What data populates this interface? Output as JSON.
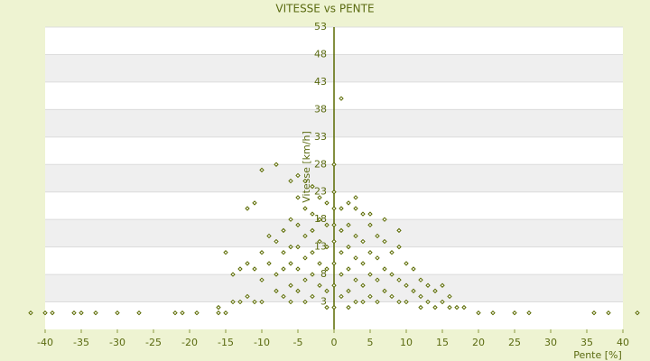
{
  "chart_data": {
    "type": "scatter",
    "title": "VITESSE vs PENTE",
    "x_label": "Pente [%]",
    "y_label": "Vitesse [km/h]",
    "x": [
      -14,
      -13,
      -14,
      -12,
      -11,
      -10,
      -12,
      -11,
      -10,
      -10,
      -9,
      -9,
      -8,
      -8,
      -8,
      -7,
      -7,
      -7,
      -7,
      -6,
      -6,
      -6,
      -6,
      -6,
      -5,
      -5,
      -5,
      -5,
      -5,
      -4,
      -4,
      -4,
      -4,
      -4,
      -4,
      -3,
      -3,
      -3,
      -3,
      -3,
      -3,
      -2,
      -2,
      -2,
      -2,
      -2,
      -1,
      -1,
      -1,
      -1,
      -1,
      -1,
      -12,
      -11,
      -10,
      -8,
      -6,
      -5,
      -15,
      -16,
      -13,
      0,
      0,
      0,
      0,
      0,
      0,
      0,
      0,
      1,
      1,
      1,
      1,
      1,
      1,
      2,
      2,
      2,
      2,
      2,
      2,
      3,
      3,
      3,
      3,
      3,
      4,
      4,
      4,
      4,
      4,
      5,
      5,
      5,
      5,
      6,
      6,
      6,
      6,
      7,
      7,
      7,
      8,
      8,
      8,
      9,
      9,
      9,
      10,
      10,
      10,
      11,
      11,
      12,
      12,
      12,
      13,
      13,
      14,
      14,
      15,
      15,
      16,
      17,
      18,
      16,
      9,
      7,
      5,
      3,
      -42,
      -40,
      -39,
      -36,
      -35,
      -33,
      -30,
      -27,
      -22,
      -21,
      -19,
      -16,
      -15,
      20,
      22,
      25,
      27,
      36,
      38,
      42
    ],
    "values": [
      8,
      9,
      3,
      4,
      3,
      3,
      10,
      9,
      12,
      7,
      15,
      10,
      14,
      8,
      5,
      16,
      12,
      9,
      4,
      18,
      13,
      10,
      6,
      3,
      22,
      17,
      13,
      9,
      5,
      25,
      20,
      15,
      11,
      7,
      3,
      24,
      19,
      16,
      12,
      8,
      4,
      22,
      18,
      14,
      10,
      6,
      21,
      17,
      13,
      9,
      5,
      2,
      20,
      21,
      27,
      28,
      25,
      26,
      12,
      2,
      3,
      2,
      6,
      10,
      14,
      17,
      20,
      23,
      28,
      20,
      16,
      12,
      8,
      4,
      40,
      21,
      17,
      13,
      9,
      5,
      2,
      20,
      15,
      11,
      7,
      3,
      19,
      14,
      10,
      6,
      3,
      17,
      12,
      8,
      4,
      15,
      11,
      7,
      3,
      14,
      9,
      5,
      12,
      8,
      4,
      13,
      7,
      3,
      10,
      6,
      3,
      9,
      5,
      7,
      4,
      2,
      6,
      3,
      5,
      2,
      6,
      3,
      4,
      2,
      2,
      2,
      16,
      18,
      19,
      22,
      1,
      1,
      1,
      1,
      1,
      1,
      1,
      1,
      1,
      1,
      1,
      1,
      1,
      1,
      1,
      1,
      1,
      1,
      1,
      1
    ],
    "color": "#5a6a00",
    "xlim": [
      -40,
      40
    ],
    "xticks": [
      -40,
      -35,
      -30,
      -25,
      -20,
      -15,
      -10,
      -5,
      0,
      5,
      10,
      15,
      20,
      25,
      30,
      35,
      40
    ],
    "ylim": [
      -2,
      53
    ],
    "yticks": [
      3,
      8,
      13,
      18,
      23,
      28,
      33,
      38,
      43,
      48,
      53
    ],
    "grid": true
  }
}
